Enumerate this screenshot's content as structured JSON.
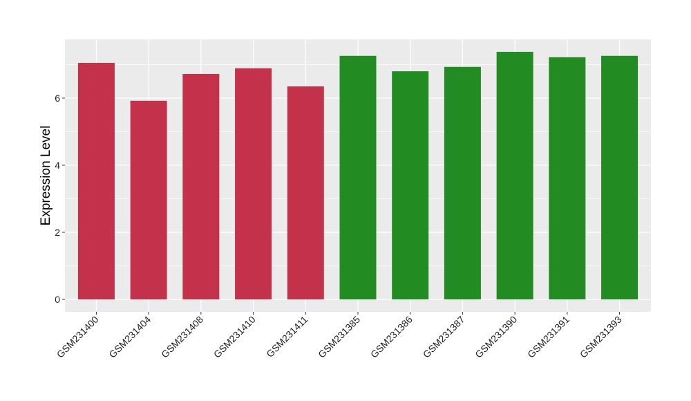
{
  "chart_data": {
    "type": "bar",
    "title": "",
    "xlabel": "",
    "ylabel": "Expression Level",
    "categories": [
      "GSM231400",
      "GSM231404",
      "GSM231408",
      "GSM231410",
      "GSM231411",
      "GSM231385",
      "GSM231386",
      "GSM231387",
      "GSM231390",
      "GSM231391",
      "GSM231393"
    ],
    "values": [
      7.05,
      5.92,
      6.72,
      6.89,
      6.35,
      7.26,
      6.8,
      6.93,
      7.38,
      7.22,
      7.26
    ],
    "bar_colors": [
      "#C4314B",
      "#C4314B",
      "#C4314B",
      "#C4314B",
      "#C4314B",
      "#228B22",
      "#228B22",
      "#228B22",
      "#228B22",
      "#228B22",
      "#228B22"
    ],
    "yticks": [
      0,
      2,
      4,
      6
    ],
    "ylim": [
      -0.37,
      7.75
    ],
    "grid": true,
    "panel_background": "#EBEBEB"
  }
}
